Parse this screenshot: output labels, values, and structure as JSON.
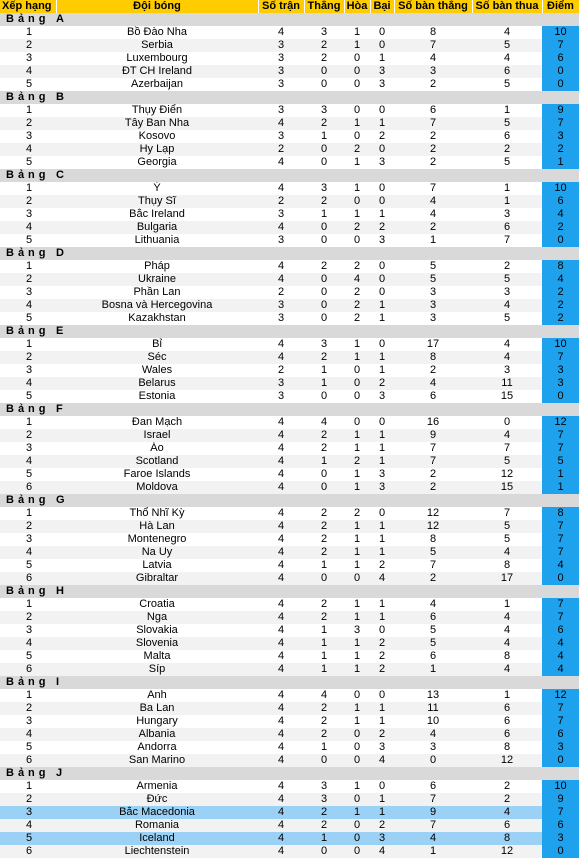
{
  "headers": {
    "rank": "Xếp hạng",
    "team": "Đội bóng",
    "played": "Số trận",
    "won": "Thắng",
    "drawn": "Hòa",
    "lost": "Bại",
    "goals_for": "Số bàn thắng",
    "goals_against": "Số bàn thua",
    "points": "Điểm"
  },
  "group_prefix": "Bảng",
  "groups": [
    {
      "name": "A",
      "rows": [
        {
          "rank": "1",
          "team": "Bồ Đào Nha",
          "pld": "4",
          "w": "3",
          "d": "1",
          "l": "0",
          "gf": "8",
          "ga": "4",
          "pts": "10"
        },
        {
          "rank": "2",
          "team": "Serbia",
          "pld": "3",
          "w": "2",
          "d": "1",
          "l": "0",
          "gf": "7",
          "ga": "5",
          "pts": "7"
        },
        {
          "rank": "3",
          "team": "Luxembourg",
          "pld": "3",
          "w": "2",
          "d": "0",
          "l": "1",
          "gf": "4",
          "ga": "4",
          "pts": "6"
        },
        {
          "rank": "4",
          "team": "ĐT CH Ireland",
          "pld": "3",
          "w": "0",
          "d": "0",
          "l": "3",
          "gf": "3",
          "ga": "6",
          "pts": "0"
        },
        {
          "rank": "5",
          "team": "Azerbaijan",
          "pld": "3",
          "w": "0",
          "d": "0",
          "l": "3",
          "gf": "2",
          "ga": "5",
          "pts": "0"
        }
      ]
    },
    {
      "name": "B",
      "rows": [
        {
          "rank": "1",
          "team": "Thụy Điển",
          "pld": "3",
          "w": "3",
          "d": "0",
          "l": "0",
          "gf": "6",
          "ga": "1",
          "pts": "9"
        },
        {
          "rank": "2",
          "team": "Tây Ban Nha",
          "pld": "4",
          "w": "2",
          "d": "1",
          "l": "1",
          "gf": "7",
          "ga": "5",
          "pts": "7"
        },
        {
          "rank": "3",
          "team": "Kosovo",
          "pld": "3",
          "w": "1",
          "d": "0",
          "l": "2",
          "gf": "2",
          "ga": "6",
          "pts": "3"
        },
        {
          "rank": "4",
          "team": "Hy Lạp",
          "pld": "2",
          "w": "0",
          "d": "2",
          "l": "0",
          "gf": "2",
          "ga": "2",
          "pts": "2"
        },
        {
          "rank": "5",
          "team": "Georgia",
          "pld": "4",
          "w": "0",
          "d": "1",
          "l": "3",
          "gf": "2",
          "ga": "5",
          "pts": "1"
        }
      ]
    },
    {
      "name": "C",
      "rows": [
        {
          "rank": "1",
          "team": "Ý",
          "pld": "4",
          "w": "3",
          "d": "1",
          "l": "0",
          "gf": "7",
          "ga": "1",
          "pts": "10"
        },
        {
          "rank": "2",
          "team": "Thụy Sĩ",
          "pld": "2",
          "w": "2",
          "d": "0",
          "l": "0",
          "gf": "4",
          "ga": "1",
          "pts": "6"
        },
        {
          "rank": "3",
          "team": "Bắc Ireland",
          "pld": "3",
          "w": "1",
          "d": "1",
          "l": "1",
          "gf": "4",
          "ga": "3",
          "pts": "4"
        },
        {
          "rank": "4",
          "team": "Bulgaria",
          "pld": "4",
          "w": "0",
          "d": "2",
          "l": "2",
          "gf": "2",
          "ga": "6",
          "pts": "2"
        },
        {
          "rank": "5",
          "team": "Lithuania",
          "pld": "3",
          "w": "0",
          "d": "0",
          "l": "3",
          "gf": "1",
          "ga": "7",
          "pts": "0"
        }
      ]
    },
    {
      "name": "D",
      "rows": [
        {
          "rank": "1",
          "team": "Pháp",
          "pld": "4",
          "w": "2",
          "d": "2",
          "l": "0",
          "gf": "5",
          "ga": "2",
          "pts": "8"
        },
        {
          "rank": "2",
          "team": "Ukraine",
          "pld": "4",
          "w": "0",
          "d": "4",
          "l": "0",
          "gf": "5",
          "ga": "5",
          "pts": "4"
        },
        {
          "rank": "3",
          "team": "Phần Lan",
          "pld": "2",
          "w": "0",
          "d": "2",
          "l": "0",
          "gf": "3",
          "ga": "3",
          "pts": "2"
        },
        {
          "rank": "4",
          "team": "Bosna và Hercegovina",
          "pld": "3",
          "w": "0",
          "d": "2",
          "l": "1",
          "gf": "3",
          "ga": "4",
          "pts": "2"
        },
        {
          "rank": "5",
          "team": "Kazakhstan",
          "pld": "3",
          "w": "0",
          "d": "2",
          "l": "1",
          "gf": "3",
          "ga": "5",
          "pts": "2"
        }
      ]
    },
    {
      "name": "E",
      "rows": [
        {
          "rank": "1",
          "team": "Bỉ",
          "pld": "4",
          "w": "3",
          "d": "1",
          "l": "0",
          "gf": "17",
          "ga": "4",
          "pts": "10"
        },
        {
          "rank": "2",
          "team": "Séc",
          "pld": "4",
          "w": "2",
          "d": "1",
          "l": "1",
          "gf": "8",
          "ga": "4",
          "pts": "7"
        },
        {
          "rank": "3",
          "team": "Wales",
          "pld": "2",
          "w": "1",
          "d": "0",
          "l": "1",
          "gf": "2",
          "ga": "3",
          "pts": "3"
        },
        {
          "rank": "4",
          "team": "Belarus",
          "pld": "3",
          "w": "1",
          "d": "0",
          "l": "2",
          "gf": "4",
          "ga": "11",
          "pts": "3"
        },
        {
          "rank": "5",
          "team": "Estonia",
          "pld": "3",
          "w": "0",
          "d": "0",
          "l": "3",
          "gf": "6",
          "ga": "15",
          "pts": "0"
        }
      ]
    },
    {
      "name": "F",
      "rows": [
        {
          "rank": "1",
          "team": "Đan Mạch",
          "pld": "4",
          "w": "4",
          "d": "0",
          "l": "0",
          "gf": "16",
          "ga": "0",
          "pts": "12"
        },
        {
          "rank": "2",
          "team": "Israel",
          "pld": "4",
          "w": "2",
          "d": "1",
          "l": "1",
          "gf": "9",
          "ga": "4",
          "pts": "7"
        },
        {
          "rank": "3",
          "team": "Áo",
          "pld": "4",
          "w": "2",
          "d": "1",
          "l": "1",
          "gf": "7",
          "ga": "7",
          "pts": "7"
        },
        {
          "rank": "4",
          "team": "Scotland",
          "pld": "4",
          "w": "1",
          "d": "2",
          "l": "1",
          "gf": "7",
          "ga": "5",
          "pts": "5"
        },
        {
          "rank": "5",
          "team": "Faroe Islands",
          "pld": "4",
          "w": "0",
          "d": "1",
          "l": "3",
          "gf": "2",
          "ga": "12",
          "pts": "1"
        },
        {
          "rank": "6",
          "team": "Moldova",
          "pld": "4",
          "w": "0",
          "d": "1",
          "l": "3",
          "gf": "2",
          "ga": "15",
          "pts": "1"
        }
      ]
    },
    {
      "name": "G",
      "rows": [
        {
          "rank": "1",
          "team": "Thổ Nhĩ Kỳ",
          "pld": "4",
          "w": "2",
          "d": "2",
          "l": "0",
          "gf": "12",
          "ga": "7",
          "pts": "8"
        },
        {
          "rank": "2",
          "team": "Hà Lan",
          "pld": "4",
          "w": "2",
          "d": "1",
          "l": "1",
          "gf": "12",
          "ga": "5",
          "pts": "7"
        },
        {
          "rank": "3",
          "team": "Montenegro",
          "pld": "4",
          "w": "2",
          "d": "1",
          "l": "1",
          "gf": "8",
          "ga": "5",
          "pts": "7"
        },
        {
          "rank": "4",
          "team": "Na Uy",
          "pld": "4",
          "w": "2",
          "d": "1",
          "l": "1",
          "gf": "5",
          "ga": "4",
          "pts": "7"
        },
        {
          "rank": "5",
          "team": "Latvia",
          "pld": "4",
          "w": "1",
          "d": "1",
          "l": "2",
          "gf": "7",
          "ga": "8",
          "pts": "4"
        },
        {
          "rank": "6",
          "team": "Gibraltar",
          "pld": "4",
          "w": "0",
          "d": "0",
          "l": "4",
          "gf": "2",
          "ga": "17",
          "pts": "0"
        }
      ]
    },
    {
      "name": "H",
      "rows": [
        {
          "rank": "1",
          "team": "Croatia",
          "pld": "4",
          "w": "2",
          "d": "1",
          "l": "1",
          "gf": "4",
          "ga": "1",
          "pts": "7"
        },
        {
          "rank": "2",
          "team": "Nga",
          "pld": "4",
          "w": "2",
          "d": "1",
          "l": "1",
          "gf": "6",
          "ga": "4",
          "pts": "7"
        },
        {
          "rank": "3",
          "team": "Slovakia",
          "pld": "4",
          "w": "1",
          "d": "3",
          "l": "0",
          "gf": "5",
          "ga": "4",
          "pts": "6"
        },
        {
          "rank": "4",
          "team": "Slovenia",
          "pld": "4",
          "w": "1",
          "d": "1",
          "l": "2",
          "gf": "5",
          "ga": "4",
          "pts": "4"
        },
        {
          "rank": "5",
          "team": "Malta",
          "pld": "4",
          "w": "1",
          "d": "1",
          "l": "2",
          "gf": "6",
          "ga": "8",
          "pts": "4"
        },
        {
          "rank": "6",
          "team": "Síp",
          "pld": "4",
          "w": "1",
          "d": "1",
          "l": "2",
          "gf": "1",
          "ga": "4",
          "pts": "4"
        }
      ]
    },
    {
      "name": "I",
      "rows": [
        {
          "rank": "1",
          "team": "Anh",
          "pld": "4",
          "w": "4",
          "d": "0",
          "l": "0",
          "gf": "13",
          "ga": "1",
          "pts": "12"
        },
        {
          "rank": "2",
          "team": "Ba Lan",
          "pld": "4",
          "w": "2",
          "d": "1",
          "l": "1",
          "gf": "11",
          "ga": "6",
          "pts": "7"
        },
        {
          "rank": "3",
          "team": "Hungary",
          "pld": "4",
          "w": "2",
          "d": "1",
          "l": "1",
          "gf": "10",
          "ga": "6",
          "pts": "7"
        },
        {
          "rank": "4",
          "team": "Albania",
          "pld": "4",
          "w": "2",
          "d": "0",
          "l": "2",
          "gf": "4",
          "ga": "6",
          "pts": "6"
        },
        {
          "rank": "5",
          "team": "Andorra",
          "pld": "4",
          "w": "1",
          "d": "0",
          "l": "3",
          "gf": "3",
          "ga": "8",
          "pts": "3"
        },
        {
          "rank": "6",
          "team": "San Marino",
          "pld": "4",
          "w": "0",
          "d": "0",
          "l": "4",
          "gf": "0",
          "ga": "12",
          "pts": "0"
        }
      ]
    },
    {
      "name": "J",
      "rows": [
        {
          "rank": "1",
          "team": "Armenia",
          "pld": "4",
          "w": "3",
          "d": "1",
          "l": "0",
          "gf": "6",
          "ga": "2",
          "pts": "10"
        },
        {
          "rank": "2",
          "team": "Đức",
          "pld": "4",
          "w": "3",
          "d": "0",
          "l": "1",
          "gf": "7",
          "ga": "2",
          "pts": "9"
        },
        {
          "rank": "3",
          "team": "Bắc Macedonia",
          "pld": "4",
          "w": "2",
          "d": "1",
          "l": "1",
          "gf": "9",
          "ga": "4",
          "pts": "7",
          "highlight": true
        },
        {
          "rank": "4",
          "team": "Romania",
          "pld": "4",
          "w": "2",
          "d": "0",
          "l": "2",
          "gf": "7",
          "ga": "6",
          "pts": "6"
        },
        {
          "rank": "5",
          "team": "Iceland",
          "pld": "4",
          "w": "1",
          "d": "0",
          "l": "3",
          "gf": "4",
          "ga": "8",
          "pts": "3",
          "highlight": true
        },
        {
          "rank": "6",
          "team": "Liechtenstein",
          "pld": "4",
          "w": "0",
          "d": "0",
          "l": "4",
          "gf": "1",
          "ga": "12",
          "pts": "0"
        }
      ]
    }
  ]
}
